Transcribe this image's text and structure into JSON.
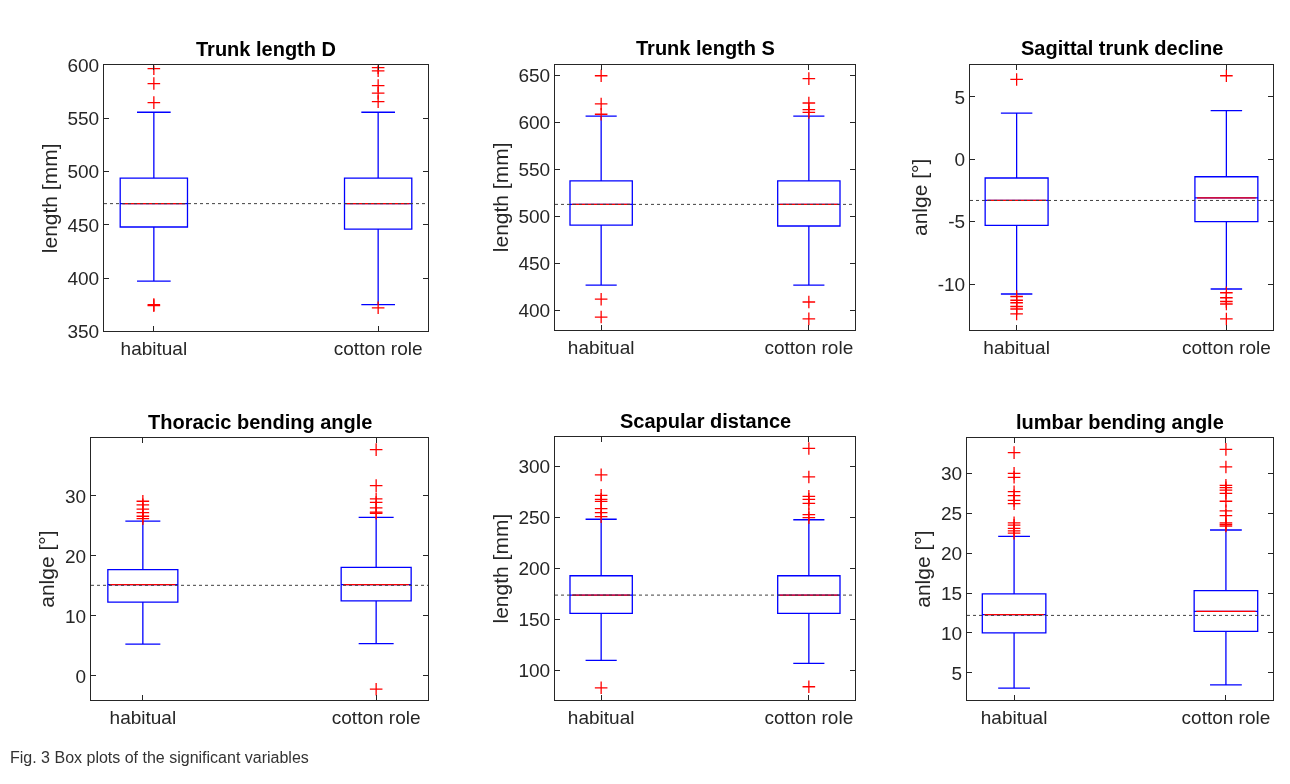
{
  "chart_data": [
    {
      "type": "box",
      "title": "Trunk length D",
      "ylabel": "length [mm]",
      "categories": [
        "habitual",
        "cotton role"
      ],
      "ylim": [
        350,
        600
      ],
      "yticks": [
        350,
        400,
        450,
        500,
        550,
        600
      ],
      "marker": "cross",
      "ref_lines": [
        {
          "axis": "y",
          "value": 470,
          "color": "#404040",
          "line_style": "dotted"
        }
      ],
      "series": [
        {
          "color": "#0000ff",
          "boxes": [
            {
              "low": 397,
              "q1": 448,
              "median": 470,
              "q3": 494,
              "high": 556,
              "outliers": [
                597,
                583,
                565,
                375,
                374
              ]
            },
            {
              "low": 375,
              "q1": 446,
              "median": 470,
              "q3": 494,
              "high": 556,
              "outliers": [
                598,
                595,
                581,
                574,
                566,
                372
              ]
            }
          ]
        }
      ]
    },
    {
      "type": "box",
      "title": "Trunk length S",
      "ylabel": "length [mm]",
      "categories": [
        "habitual",
        "cotton role"
      ],
      "ylim": [
        379,
        662
      ],
      "yticks": [
        400,
        450,
        500,
        550,
        600,
        650
      ],
      "marker": "cross",
      "ref_lines": [
        {
          "axis": "y",
          "value": 513,
          "color": "#404040",
          "line_style": "dotted"
        }
      ],
      "series": [
        {
          "color": "#0000ff",
          "boxes": [
            {
              "low": 427,
              "q1": 491,
              "median": 513,
              "q3": 538,
              "high": 607,
              "outliers": [
                650,
                620,
                609,
                412,
                393
              ]
            },
            {
              "low": 427,
              "q1": 490,
              "median": 513,
              "q3": 538,
              "high": 607,
              "outliers": [
                647,
                621,
                614,
                611,
                409,
                391
              ]
            }
          ]
        }
      ]
    },
    {
      "type": "box",
      "title": "Sagittal trunk decline",
      "ylabel": "anlge [°]",
      "categories": [
        "habitual",
        "cotton role"
      ],
      "ylim": [
        -13.7,
        7.6
      ],
      "yticks": [
        -10,
        -5,
        0,
        5
      ],
      "marker": "cross",
      "ref_lines": [
        {
          "axis": "y",
          "value": -3.3,
          "color": "#404040",
          "line_style": "dotted"
        }
      ],
      "series": [
        {
          "color": "#0000ff",
          "boxes": [
            {
              "low": -10.8,
              "q1": -5.3,
              "median": -3.3,
              "q3": -1.5,
              "high": 3.7,
              "outliers": [
                6.4,
                -11.0,
                -11.3,
                -11.5,
                -11.8,
                -12.0,
                -12.4
              ]
            },
            {
              "low": -10.4,
              "q1": -5.0,
              "median": -3.1,
              "q3": -1.4,
              "high": 3.9,
              "outliers": [
                6.7,
                -10.7,
                -11.1,
                -11.4,
                -11.6,
                -12.8
              ]
            }
          ]
        }
      ]
    },
    {
      "type": "box",
      "title": "Thoracic bending angle",
      "ylabel": "anlge [°]",
      "categories": [
        "habitual",
        "cotton role"
      ],
      "ylim": [
        -4,
        39.6
      ],
      "yticks": [
        0,
        10,
        20,
        30
      ],
      "marker": "cross",
      "annotations": [
        "Fig. 3 Box plots of the significant variables"
      ],
      "ref_lines": [
        {
          "axis": "y",
          "value": 15.1,
          "color": "#404040",
          "line_style": "dotted"
        }
      ],
      "series": [
        {
          "color": "#0000ff",
          "boxes": [
            {
              "low": 5.3,
              "q1": 12.3,
              "median": 15.2,
              "q3": 17.7,
              "high": 25.8,
              "outliers": [
                29.1,
                28.5,
                27.8,
                27.2,
                26.6,
                26.2
              ]
            },
            {
              "low": 5.4,
              "q1": 12.5,
              "median": 15.2,
              "q3": 18.1,
              "high": 26.4,
              "outliers": [
                37.7,
                31.7,
                29.5,
                28.9,
                28.0,
                27.3,
                27.1,
                -2.2
              ]
            }
          ]
        }
      ]
    },
    {
      "type": "box",
      "title": "Scapular distance",
      "ylabel": "length [mm]",
      "categories": [
        "habitual",
        "cotton role"
      ],
      "ylim": [
        71,
        329
      ],
      "yticks": [
        100,
        150,
        200,
        250,
        300
      ],
      "marker": "cross",
      "ref_lines": [
        {
          "axis": "y",
          "value": 174,
          "color": "#404040",
          "line_style": "dotted"
        }
      ],
      "series": [
        {
          "color": "#0000ff",
          "boxes": [
            {
              "low": 110,
              "q1": 156,
              "median": 174,
              "q3": 193,
              "high": 248.5,
              "outliers": [
                292,
                272,
                268,
                266,
                259,
                255,
                251,
                83
              ]
            },
            {
              "low": 107,
              "q1": 156,
              "median": 174,
              "q3": 193,
              "high": 248,
              "outliers": [
                318,
                290,
                271,
                268,
                264,
                253,
                250,
                84
              ]
            }
          ]
        }
      ]
    },
    {
      "type": "box",
      "title": "lumbar bending angle",
      "ylabel": "anlge [°]",
      "categories": [
        "habitual",
        "cotton role"
      ],
      "ylim": [
        1.6,
        34.4
      ],
      "yticks": [
        5,
        10,
        15,
        20,
        25,
        30
      ],
      "marker": "cross",
      "ref_lines": [
        {
          "axis": "y",
          "value": 12.2,
          "color": "#404040",
          "line_style": "dotted"
        }
      ],
      "series": [
        {
          "color": "#0000ff",
          "boxes": [
            {
              "low": 3.1,
              "q1": 10.0,
              "median": 12.3,
              "q3": 14.9,
              "high": 22.1,
              "outliers": [
                32.6,
                30.0,
                29.5,
                27.7,
                27.2,
                26.6,
                26.2,
                23.8,
                23.5,
                23.1,
                22.8,
                22.5
              ]
            },
            {
              "low": 3.5,
              "q1": 10.2,
              "median": 12.7,
              "q3": 15.3,
              "high": 22.9,
              "outliers": [
                33.0,
                30.8,
                28.5,
                28.2,
                27.9,
                27.5,
                26.5,
                25.3,
                24.7,
                23.8,
                23.6,
                23.4
              ]
            }
          ]
        }
      ]
    }
  ]
}
